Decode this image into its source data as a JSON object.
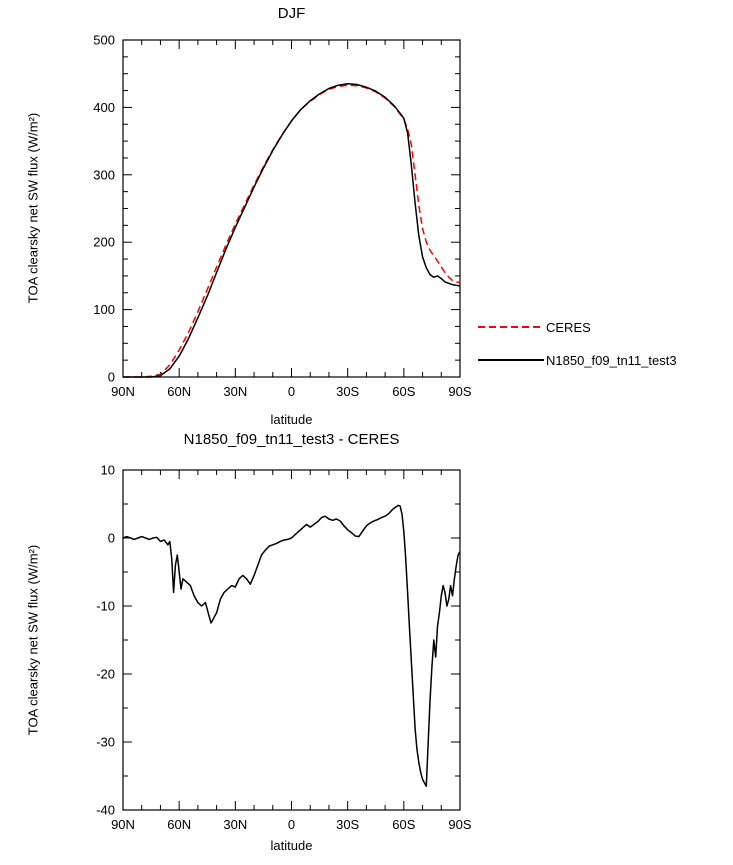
{
  "figure": {
    "background": "#ffffff",
    "frame_color": "#000000"
  },
  "chart_data": [
    {
      "type": "line",
      "title": "DJF",
      "xlabel": "latitude",
      "ylabel": "TOA clearsky net SW flux (W/m²)",
      "xlim": [
        90,
        -90
      ],
      "ylim": [
        0,
        500
      ],
      "grid": false,
      "xticks": {
        "values": [
          90,
          60,
          30,
          0,
          -30,
          -60,
          -90
        ],
        "labels": [
          "90N",
          "60N",
          "30N",
          "0",
          "30S",
          "60S",
          "90S"
        ]
      },
      "yticks": {
        "values": [
          0,
          100,
          200,
          300,
          400,
          500
        ],
        "labels": [
          "0",
          "100",
          "200",
          "300",
          "400",
          "500"
        ]
      },
      "xminor": 10,
      "yminor": 25,
      "legend": {
        "position": "outside-right"
      },
      "series": [
        {
          "name": "CERES",
          "color": "#ff0000",
          "style": "dashed",
          "lat": [
            90,
            85,
            80,
            75,
            70,
            65,
            60,
            55,
            50,
            45,
            40,
            35,
            30,
            25,
            20,
            15,
            10,
            5,
            0,
            -5,
            -10,
            -15,
            -20,
            -25,
            -30,
            -35,
            -40,
            -45,
            -50,
            -55,
            -60,
            -62,
            -64,
            -66,
            -68,
            -70,
            -72,
            -74,
            -76,
            -78,
            -80,
            -82,
            -84,
            -86,
            -88,
            -90
          ],
          "value": [
            0,
            0,
            0,
            1,
            4,
            18,
            40,
            66,
            97,
            130,
            163,
            196,
            227,
            256,
            285,
            312,
            337,
            360,
            380,
            397,
            409,
            419,
            427,
            431,
            433,
            432,
            429,
            423,
            414,
            401,
            383,
            368,
            345,
            300,
            255,
            220,
            200,
            188,
            180,
            172,
            163,
            155,
            148,
            143,
            141,
            140
          ]
        },
        {
          "name": "N1850_f09_tn11_test3",
          "color": "#000000",
          "style": "solid",
          "lat": [
            90,
            85,
            80,
            75,
            70,
            65,
            60,
            55,
            50,
            45,
            40,
            35,
            30,
            25,
            20,
            15,
            10,
            5,
            0,
            -5,
            -10,
            -15,
            -20,
            -25,
            -30,
            -35,
            -40,
            -45,
            -50,
            -55,
            -60,
            -62,
            -64,
            -66,
            -68,
            -70,
            -72,
            -74,
            -76,
            -78,
            -80,
            -82,
            -84,
            -86,
            -88,
            -90
          ],
          "value": [
            0,
            0,
            0,
            0,
            2,
            12,
            31,
            57,
            88,
            120,
            155,
            190,
            222,
            252,
            282,
            310,
            336,
            359,
            380,
            397,
            410,
            420,
            428,
            433,
            435,
            434,
            430,
            424,
            415,
            402,
            384,
            362,
            315,
            258,
            210,
            178,
            162,
            152,
            148,
            150,
            146,
            141,
            139,
            137,
            136,
            135
          ]
        }
      ]
    },
    {
      "type": "line",
      "title": "N1850_f09_tn11_test3 - CERES",
      "xlabel": "latitude",
      "ylabel": "TOA clearsky net SW flux (W/m²)",
      "xlim": [
        90,
        -90
      ],
      "ylim": [
        -40,
        10
      ],
      "grid": false,
      "xticks": {
        "values": [
          90,
          60,
          30,
          0,
          -30,
          -60,
          -90
        ],
        "labels": [
          "90N",
          "60N",
          "30N",
          "0",
          "30S",
          "60S",
          "90S"
        ]
      },
      "yticks": {
        "values": [
          -40,
          -30,
          -20,
          -10,
          0,
          10
        ],
        "labels": [
          "-40",
          "-30",
          "-20",
          "-10",
          "0",
          "10"
        ]
      },
      "xminor": 10,
      "yminor": 5,
      "legend": {
        "position": "none"
      },
      "series": [
        {
          "name": "N1850_f09_tn11_test3 - CERES",
          "color": "#000000",
          "style": "solid",
          "lat": [
            90,
            88,
            86,
            84,
            82,
            80,
            78,
            76,
            74,
            72,
            70,
            68,
            66,
            65,
            64,
            63,
            62,
            61,
            60,
            59,
            58,
            56,
            54,
            52,
            50,
            48,
            46,
            45,
            44,
            43,
            42,
            41,
            40,
            38,
            36,
            34,
            32,
            30,
            28,
            26,
            24,
            22,
            20,
            18,
            16,
            14,
            12,
            10,
            8,
            6,
            4,
            2,
            0,
            -2,
            -4,
            -6,
            -8,
            -10,
            -12,
            -14,
            -16,
            -18,
            -20,
            -22,
            -24,
            -26,
            -28,
            -30,
            -32,
            -34,
            -36,
            -38,
            -40,
            -42,
            -44,
            -46,
            -48,
            -50,
            -52,
            -54,
            -56,
            -57,
            -58,
            -59,
            -60,
            -61,
            -62,
            -63,
            -64,
            -65,
            -66,
            -67,
            -68,
            -69,
            -70,
            -71,
            -72,
            -73,
            -74,
            -75,
            -76,
            -77,
            -78,
            -79,
            -80,
            -81,
            -82,
            -83,
            -84,
            -85,
            -86,
            -87,
            -88,
            -89,
            -90
          ],
          "value": [
            0,
            0.2,
            0,
            -0.2,
            0,
            0.2,
            0,
            -0.2,
            0,
            0.1,
            -0.5,
            -0.3,
            -1,
            -0.5,
            -3,
            -8,
            -4,
            -2.5,
            -5,
            -7.5,
            -6,
            -6.5,
            -7,
            -8.5,
            -9.5,
            -10,
            -9.5,
            -10.5,
            -11.5,
            -12.5,
            -12,
            -11.5,
            -11,
            -9,
            -8,
            -7.5,
            -7,
            -7.2,
            -6,
            -5.5,
            -6,
            -6.8,
            -5.5,
            -4,
            -2.5,
            -1.8,
            -1.2,
            -1,
            -0.8,
            -0.5,
            -0.3,
            -0.2,
            0,
            0.5,
            1,
            1.5,
            2,
            1.6,
            2,
            2.4,
            3,
            3.2,
            2.8,
            2.6,
            2.8,
            2.5,
            1.8,
            1.2,
            0.8,
            0.3,
            0.2,
            1,
            1.8,
            2.2,
            2.5,
            2.7,
            3,
            3.2,
            3.6,
            4.2,
            4.6,
            4.8,
            4.7,
            3.5,
            1,
            -3,
            -8,
            -13,
            -18,
            -23,
            -28,
            -31,
            -33,
            -34.5,
            -35.5,
            -36,
            -36.5,
            -30,
            -24,
            -19,
            -15,
            -17.5,
            -13,
            -11,
            -8.5,
            -7,
            -8,
            -10,
            -9,
            -7,
            -8.5,
            -6,
            -4,
            -2.5,
            -2
          ]
        }
      ]
    }
  ]
}
